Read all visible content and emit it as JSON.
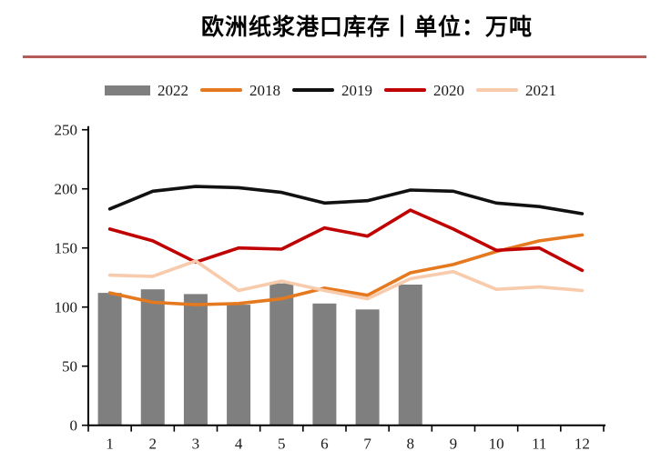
{
  "title": "欧洲纸浆港口库存丨单位：万吨",
  "colors": {
    "separator_rule": "#b65a5a",
    "bar_2022": "#7f7f7f",
    "line_2018": "#e5791f",
    "line_2019": "#111111",
    "line_2020": "#c00000",
    "line_2021": "#f7cbac",
    "axis": "#000000"
  },
  "legend": [
    {
      "label": "2022",
      "type": "bar",
      "color": "#7f7f7f"
    },
    {
      "label": "2018",
      "type": "line",
      "color": "#e5791f"
    },
    {
      "label": "2019",
      "type": "line",
      "color": "#111111"
    },
    {
      "label": "2020",
      "type": "line",
      "color": "#c00000"
    },
    {
      "label": "2021",
      "type": "line",
      "color": "#f7cbac"
    }
  ],
  "chart_data": {
    "type": "bar",
    "subtype": "combo-bar-line",
    "title": "欧洲纸浆港口库存丨单位：万吨",
    "unit": "万吨",
    "xlabel": "",
    "ylabel": "",
    "categories": [
      "1",
      "2",
      "3",
      "4",
      "5",
      "6",
      "7",
      "8",
      "9",
      "10",
      "11",
      "12"
    ],
    "bar_series": {
      "name": "2022",
      "color": "#7f7f7f",
      "values": [
        112,
        115,
        111,
        102,
        120,
        103,
        98,
        119,
        null,
        null,
        null,
        null
      ]
    },
    "line_series": [
      {
        "name": "2018",
        "color": "#e5791f",
        "values": [
          112,
          104,
          102,
          103,
          107,
          116,
          110,
          129,
          136,
          147,
          156,
          161
        ]
      },
      {
        "name": "2019",
        "color": "#111111",
        "values": [
          183,
          198,
          202,
          201,
          197,
          188,
          190,
          199,
          198,
          188,
          185,
          179
        ]
      },
      {
        "name": "2020",
        "color": "#c00000",
        "values": [
          166,
          156,
          138,
          150,
          149,
          167,
          160,
          182,
          166,
          148,
          150,
          131
        ]
      },
      {
        "name": "2021",
        "color": "#f7cbac",
        "values": [
          127,
          126,
          139,
          114,
          122,
          114,
          107,
          124,
          130,
          115,
          117,
          114
        ]
      }
    ],
    "ylim": [
      0,
      250
    ],
    "yticks": [
      0,
      50,
      100,
      150,
      200,
      250
    ],
    "grid": false,
    "legend_position": "top"
  }
}
